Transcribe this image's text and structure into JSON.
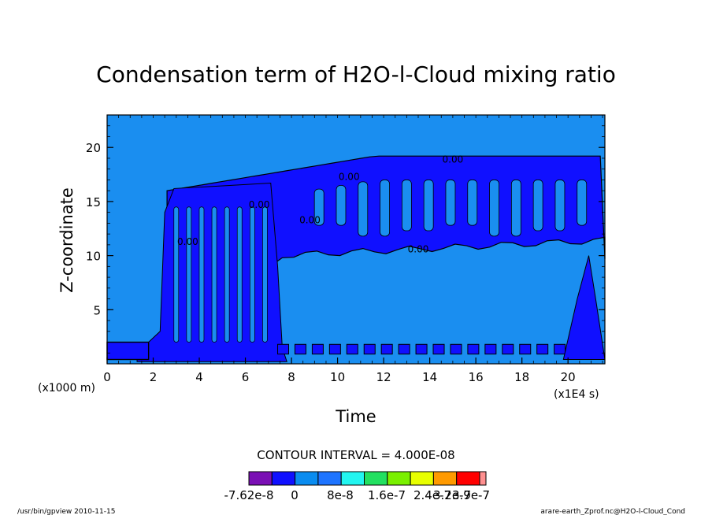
{
  "chart_data": {
    "type": "heatmap",
    "title": "Condensation term of H2O-l-Cloud mixing ratio",
    "xlabel": "Time",
    "ylabel": "Z-coordinate",
    "x_unit_label": "(x1E4 s)",
    "y_unit_label": "(x1000 m)",
    "xlim": [
      0,
      21.6
    ],
    "ylim": [
      0,
      23
    ],
    "x_ticks": [
      0,
      2,
      4,
      6,
      8,
      10,
      12,
      14,
      16,
      18,
      20
    ],
    "y_ticks": [
      5,
      10,
      15,
      20
    ],
    "contour_interval_label": "CONTOUR INTERVAL = 4.000E-08",
    "contour_annotation": "0.00",
    "colorbar": {
      "colors": [
        "#7a0fb4",
        "#1010ff",
        "#0a8cf0",
        "#1e74ff",
        "#22f5f0",
        "#22e060",
        "#7af000",
        "#e8ff00",
        "#ff9a00",
        "#ff0000",
        "#ff9090"
      ],
      "tick_labels": [
        "-7.62e-8",
        "0",
        "8e-8",
        "1.6e-7",
        "2.4e-7",
        "3.2e-7",
        "3.9e-7"
      ]
    },
    "background_color": "#1a8ef0",
    "cloud_band": {
      "z_bottom": 10,
      "z_top_start": 16,
      "z_top_end": 19.2,
      "t_start": 2.6,
      "t_end": 21.6
    },
    "grid": false,
    "legend": "colorbar-bottom"
  },
  "footer": {
    "left": "/usr/bin/gpview  2010-11-15",
    "right": "arare-earth_Zprof.nc@H2O-l-Cloud_Cond"
  }
}
